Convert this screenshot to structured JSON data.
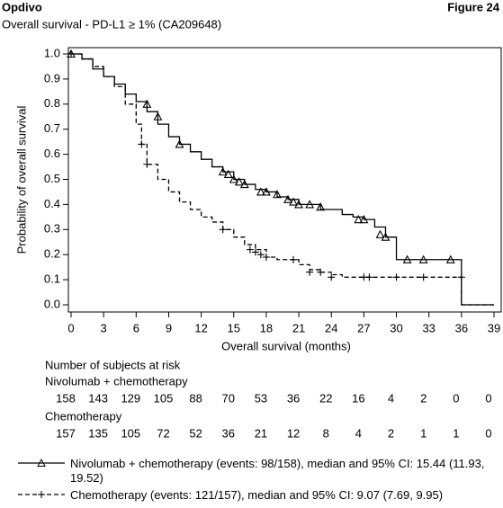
{
  "header": {
    "left": "Opdivo",
    "right": "Figure 24"
  },
  "chart_data": {
    "type": "km",
    "title": "Overall survival - PD-L1 ≥ 1% (CA209648)",
    "xlabel": "Overall survival (months)",
    "ylabel": "Probability of overall survival",
    "xlim": [
      0,
      39
    ],
    "xticks": [
      0,
      3,
      6,
      9,
      12,
      15,
      18,
      21,
      24,
      27,
      30,
      33,
      36,
      39
    ],
    "ylim": [
      0,
      1
    ],
    "yticks": [
      {
        "value": 0,
        "label": "0.0"
      },
      0.1,
      0.2,
      0.3,
      0.4,
      0.5,
      0.6,
      0.7,
      0.8,
      0.9,
      {
        "value": 1,
        "label": "1.0"
      }
    ],
    "series": [
      {
        "name": "Nivolumab + chemotherapy (events: 98/158), median and 95% CI: 15.44 (11.93, 19.52)",
        "color": "#000000",
        "line_style": "solid",
        "marker": "triangle",
        "x": [
          0,
          1,
          2,
          3,
          4,
          5,
          6,
          7,
          8,
          9,
          10,
          11,
          12,
          13,
          14,
          15,
          16,
          17,
          18,
          19,
          20,
          21,
          23,
          25,
          26,
          27,
          28,
          29,
          30,
          36,
          39
        ],
        "values": [
          1.0,
          0.98,
          0.94,
          0.91,
          0.88,
          0.84,
          0.81,
          0.77,
          0.72,
          0.67,
          0.64,
          0.61,
          0.58,
          0.55,
          0.53,
          0.5,
          0.48,
          0.46,
          0.45,
          0.43,
          0.42,
          0.4,
          0.38,
          0.36,
          0.35,
          0.34,
          0.31,
          0.27,
          0.18,
          0.0,
          0.0
        ],
        "censored_x": [
          0,
          7,
          8,
          10,
          14,
          14.5,
          15,
          15.5,
          16,
          17.5,
          18,
          19,
          20,
          20.5,
          21,
          22,
          23,
          26.5,
          27,
          28.5,
          29,
          31,
          32.5,
          35
        ],
        "censored_y": [
          1.0,
          0.8,
          0.75,
          0.64,
          0.53,
          0.52,
          0.5,
          0.49,
          0.48,
          0.45,
          0.45,
          0.44,
          0.42,
          0.41,
          0.4,
          0.4,
          0.39,
          0.34,
          0.34,
          0.28,
          0.27,
          0.18,
          0.18,
          0.18
        ]
      },
      {
        "name": "Chemotherapy (events: 121/157), median and 95% CI: 9.07 (7.69, 9.95)",
        "color": "#000000",
        "line_style": "dashed",
        "marker": "plus",
        "x": [
          0,
          1,
          2,
          3,
          4,
          5,
          6,
          6.5,
          7,
          8,
          9,
          10,
          11,
          12,
          13,
          14,
          15,
          16,
          17,
          18,
          19,
          21,
          22,
          23,
          24,
          25,
          36,
          39
        ],
        "values": [
          1.0,
          0.98,
          0.95,
          0.91,
          0.87,
          0.8,
          0.72,
          0.64,
          0.56,
          0.5,
          0.45,
          0.41,
          0.38,
          0.35,
          0.33,
          0.3,
          0.27,
          0.24,
          0.22,
          0.19,
          0.18,
          0.16,
          0.14,
          0.13,
          0.12,
          0.11,
          0.0,
          0.0
        ],
        "censored_x": [
          0,
          6.5,
          7,
          14,
          16.5,
          17,
          17.5,
          18,
          20.5,
          22,
          23,
          24,
          27,
          27.5,
          30,
          32.5,
          36
        ],
        "censored_y": [
          1.0,
          0.64,
          0.56,
          0.3,
          0.22,
          0.21,
          0.2,
          0.19,
          0.18,
          0.13,
          0.13,
          0.11,
          0.11,
          0.11,
          0.11,
          0.11,
          0.11
        ]
      }
    ],
    "risk_table": {
      "title": "Number of subjects at risk",
      "rows": [
        {
          "name": "Nivolumab + chemotherapy",
          "values": [
            158,
            143,
            129,
            105,
            88,
            70,
            53,
            36,
            22,
            16,
            4,
            2,
            0,
            0
          ]
        },
        {
          "name": "Chemotherapy",
          "values": [
            157,
            135,
            105,
            72,
            52,
            36,
            21,
            12,
            8,
            4,
            2,
            1,
            1,
            0
          ]
        }
      ]
    }
  }
}
